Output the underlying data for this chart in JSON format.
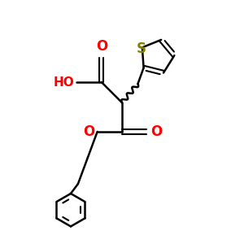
{
  "black": "#000000",
  "red": "#ff0000",
  "sulfur_color": "#808000",
  "lw": 1.8,
  "lw_thin": 1.5,
  "figsize": [
    3.0,
    3.0
  ],
  "dpi": 100,
  "xlim": [
    0,
    10
  ],
  "ylim": [
    0,
    10
  ]
}
